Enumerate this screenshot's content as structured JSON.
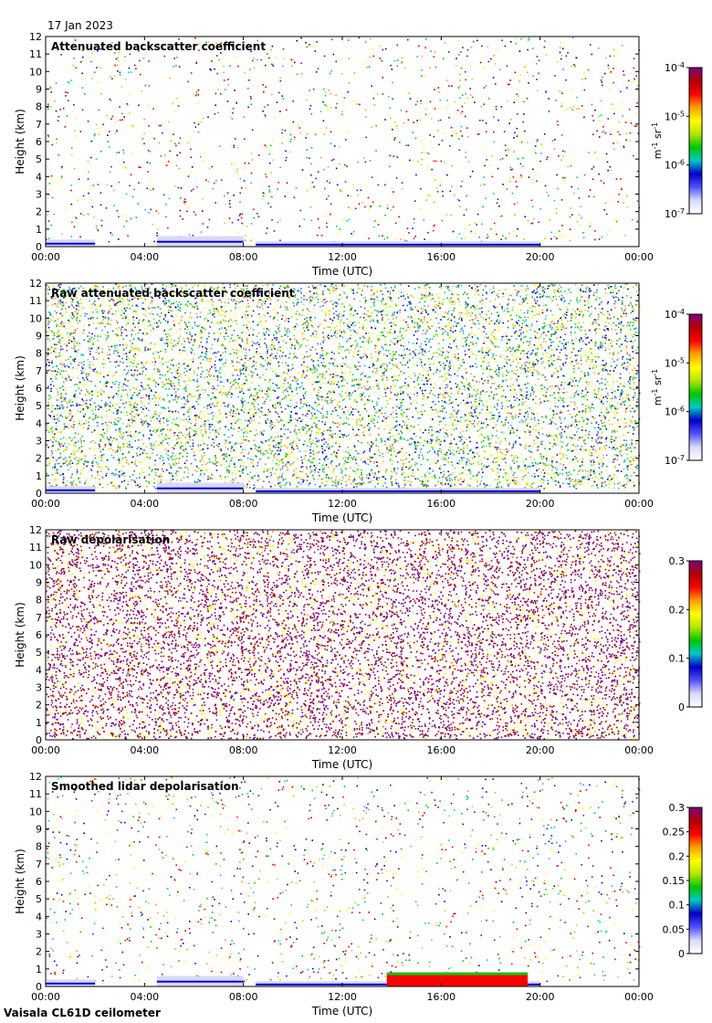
{
  "date_label": "17 Jan 2023",
  "footer": "Vaisala CL61D ceilometer",
  "colors": {
    "colormap": [
      "#ffffff",
      "#d8d8ff",
      "#5050ff",
      "#0000c8",
      "#00c8c8",
      "#00c800",
      "#b4e600",
      "#ffff00",
      "#ffa000",
      "#ff0000",
      "#b40000",
      "#800080"
    ],
    "frame": "#000000",
    "background": "#ffffff"
  },
  "chart_data": [
    {
      "type": "heatmap",
      "title": "Attenuated backscatter coefficient",
      "xlabel": "Time (UTC)",
      "ylabel": "Height (km)",
      "x_ticks": [
        "00:00",
        "04:00",
        "08:00",
        "12:00",
        "16:00",
        "20:00",
        "00:00"
      ],
      "y_ticks": [
        "0",
        "1",
        "2",
        "3",
        "4",
        "5",
        "6",
        "7",
        "8",
        "9",
        "10",
        "11",
        "12"
      ],
      "ylim": [
        0,
        12
      ],
      "xlim_hours": [
        0,
        24
      ],
      "colorbar": {
        "scale": "log",
        "range": [
          1e-07,
          0.0001
        ],
        "ticks": [
          "10",
          "10",
          "10",
          "10"
        ],
        "tick_exponents": [
          "-4",
          "-5",
          "-6",
          "-7"
        ],
        "unit_parts": [
          "m",
          "-1",
          " sr",
          "-1"
        ]
      },
      "features": {
        "layer_segments": [
          [
            0.0,
            2.0,
            0.4
          ],
          [
            4.5,
            8.0,
            0.6
          ],
          [
            8.5,
            20.0,
            0.3
          ]
        ],
        "speckle": "sparse"
      }
    },
    {
      "type": "heatmap",
      "title": "Raw attenuated backscatter coefficient",
      "xlabel": "Time (UTC)",
      "ylabel": "Height (km)",
      "x_ticks": [
        "00:00",
        "04:00",
        "08:00",
        "12:00",
        "16:00",
        "20:00",
        "00:00"
      ],
      "y_ticks": [
        "0",
        "1",
        "2",
        "3",
        "4",
        "5",
        "6",
        "7",
        "8",
        "9",
        "10",
        "11",
        "12"
      ],
      "ylim": [
        0,
        12
      ],
      "xlim_hours": [
        0,
        24
      ],
      "colorbar": {
        "scale": "log",
        "range": [
          1e-07,
          0.0001
        ],
        "ticks": [
          "10",
          "10",
          "10",
          "10"
        ],
        "tick_exponents": [
          "-4",
          "-5",
          "-6",
          "-7"
        ],
        "unit_parts": [
          "m",
          "-1",
          " sr",
          "-1"
        ]
      },
      "features": {
        "layer_segments": [
          [
            0.0,
            2.0,
            0.4
          ],
          [
            4.5,
            8.0,
            0.6
          ],
          [
            8.5,
            20.0,
            0.3
          ]
        ],
        "speckle": "dense"
      }
    },
    {
      "type": "heatmap",
      "title": "Raw depolarisation",
      "xlabel": "Time (UTC)",
      "ylabel": "Height (km)",
      "x_ticks": [
        "00:00",
        "04:00",
        "08:00",
        "12:00",
        "16:00",
        "20:00",
        "00:00"
      ],
      "y_ticks": [
        "0",
        "1",
        "2",
        "3",
        "4",
        "5",
        "6",
        "7",
        "8",
        "9",
        "10",
        "11",
        "12"
      ],
      "ylim": [
        0,
        12
      ],
      "xlim_hours": [
        0,
        24
      ],
      "colorbar": {
        "scale": "linear",
        "range": [
          0,
          0.3
        ],
        "ticks": [
          "0.3",
          "0.2",
          "0.1",
          "0"
        ]
      },
      "features": {
        "speckle": "saturated"
      }
    },
    {
      "type": "heatmap",
      "title": "Smoothed lidar depolarisation",
      "xlabel": "Time (UTC)",
      "ylabel": "Height (km)",
      "x_ticks": [
        "00:00",
        "04:00",
        "08:00",
        "12:00",
        "16:00",
        "20:00",
        "00:00"
      ],
      "y_ticks": [
        "0",
        "1",
        "2",
        "3",
        "4",
        "5",
        "6",
        "7",
        "8",
        "9",
        "10",
        "11",
        "12"
      ],
      "ylim": [
        0,
        12
      ],
      "xlim_hours": [
        0,
        24
      ],
      "colorbar": {
        "scale": "linear",
        "range": [
          0,
          0.3
        ],
        "ticks": [
          "0.3",
          "0.25",
          "0.2",
          "0.15",
          "0.1",
          "0.05",
          "0"
        ]
      },
      "features": {
        "layer_segments": [
          [
            0.0,
            2.0,
            0.4
          ],
          [
            4.5,
            8.0,
            0.6
          ],
          [
            8.5,
            20.0,
            0.3
          ]
        ],
        "high_depol_band_hours": [
          13.8,
          19.5
        ],
        "speckle": "sparse"
      }
    }
  ]
}
